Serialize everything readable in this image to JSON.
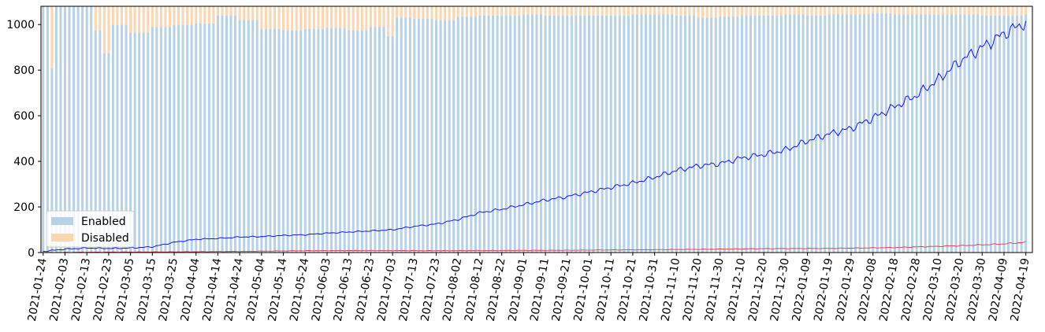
{
  "chart_data": {
    "type": "bar",
    "title": "",
    "xlabel": "",
    "ylabel": "",
    "x_type": "date",
    "x_range": [
      "2021-01-23",
      "2022-04-22"
    ],
    "ylim": [
      0,
      1080
    ],
    "yticks": [
      0,
      200,
      400,
      600,
      800,
      1000
    ],
    "xticks": [
      "2021-01-24",
      "2021-02-03",
      "2021-02-13",
      "2021-02-23",
      "2021-03-05",
      "2021-03-15",
      "2021-03-25",
      "2021-04-04",
      "2021-04-14",
      "2021-04-24",
      "2021-05-04",
      "2021-05-14",
      "2021-05-24",
      "2021-06-03",
      "2021-06-13",
      "2021-06-23",
      "2021-07-03",
      "2021-07-13",
      "2021-07-23",
      "2021-08-02",
      "2021-08-12",
      "2021-08-22",
      "2021-09-01",
      "2021-09-11",
      "2021-09-21",
      "2021-10-01",
      "2021-10-11",
      "2021-10-21",
      "2021-10-31",
      "2021-11-10",
      "2021-11-20",
      "2021-11-30",
      "2021-12-10",
      "2021-12-20",
      "2021-12-30",
      "2022-01-09",
      "2022-01-19",
      "2022-01-29",
      "2022-02-08",
      "2022-02-18",
      "2022-02-28",
      "2022-03-10",
      "2022-03-20",
      "2022-03-30",
      "2022-04-09",
      "2022-04-19"
    ],
    "grid": false,
    "legend_position": "lower-left",
    "stacked": true,
    "series": [
      {
        "name": "Enabled",
        "kind": "bar",
        "color": "#b7d1e6",
        "data": [
          [
            "2021-01-24",
            1080
          ],
          [
            "2021-01-27",
            810
          ],
          [
            "2021-01-29",
            1080
          ],
          [
            "2021-02-13",
            1080
          ],
          [
            "2021-02-16",
            975
          ],
          [
            "2021-02-20",
            875
          ],
          [
            "2021-02-25",
            1000
          ],
          [
            "2021-03-05",
            965
          ],
          [
            "2021-03-15",
            990
          ],
          [
            "2021-03-25",
            1000
          ],
          [
            "2021-04-04",
            1005
          ],
          [
            "2021-04-14",
            1040
          ],
          [
            "2021-04-24",
            1020
          ],
          [
            "2021-05-04",
            980
          ],
          [
            "2021-05-14",
            975
          ],
          [
            "2021-05-24",
            980
          ],
          [
            "2021-06-03",
            985
          ],
          [
            "2021-06-13",
            975
          ],
          [
            "2021-06-23",
            990
          ],
          [
            "2021-07-01",
            950
          ],
          [
            "2021-07-05",
            1030
          ],
          [
            "2021-07-13",
            1025
          ],
          [
            "2021-07-23",
            1020
          ],
          [
            "2021-08-02",
            1035
          ],
          [
            "2021-08-12",
            1040
          ],
          [
            "2021-08-22",
            1040
          ],
          [
            "2021-09-01",
            1045
          ],
          [
            "2021-09-11",
            1040
          ],
          [
            "2021-09-21",
            1040
          ],
          [
            "2021-10-01",
            1040
          ],
          [
            "2021-10-11",
            1040
          ],
          [
            "2021-10-21",
            1045
          ],
          [
            "2021-10-31",
            1045
          ],
          [
            "2021-11-10",
            1040
          ],
          [
            "2021-11-20",
            1030
          ],
          [
            "2021-11-30",
            1035
          ],
          [
            "2021-12-10",
            1040
          ],
          [
            "2021-12-20",
            1040
          ],
          [
            "2021-12-30",
            1045
          ],
          [
            "2022-01-09",
            1040
          ],
          [
            "2022-01-19",
            1045
          ],
          [
            "2022-01-29",
            1045
          ],
          [
            "2022-02-08",
            1050
          ],
          [
            "2022-02-18",
            1045
          ],
          [
            "2022-02-28",
            1045
          ],
          [
            "2022-03-10",
            1045
          ],
          [
            "2022-03-20",
            1045
          ],
          [
            "2022-03-30",
            1040
          ],
          [
            "2022-04-09",
            1040
          ],
          [
            "2022-04-19",
            1045
          ]
        ]
      },
      {
        "name": "Disabled",
        "kind": "bar",
        "color": "#fdd5b0",
        "data": [
          [
            "2021-01-24",
            0
          ],
          [
            "2021-01-27",
            270
          ],
          [
            "2021-01-29",
            0
          ],
          [
            "2021-02-13",
            0
          ],
          [
            "2021-02-16",
            105
          ],
          [
            "2021-02-20",
            205
          ],
          [
            "2021-02-25",
            80
          ],
          [
            "2021-03-05",
            115
          ],
          [
            "2021-03-15",
            90
          ],
          [
            "2021-03-25",
            80
          ],
          [
            "2021-04-04",
            75
          ],
          [
            "2021-04-14",
            40
          ],
          [
            "2021-04-24",
            60
          ],
          [
            "2021-05-04",
            100
          ],
          [
            "2021-05-14",
            105
          ],
          [
            "2021-05-24",
            100
          ],
          [
            "2021-06-03",
            95
          ],
          [
            "2021-06-13",
            105
          ],
          [
            "2021-06-23",
            90
          ],
          [
            "2021-07-01",
            130
          ],
          [
            "2021-07-05",
            50
          ],
          [
            "2021-07-13",
            55
          ],
          [
            "2021-07-23",
            60
          ],
          [
            "2021-08-02",
            45
          ],
          [
            "2021-08-12",
            40
          ],
          [
            "2021-08-22",
            40
          ],
          [
            "2021-09-01",
            35
          ],
          [
            "2021-09-11",
            40
          ],
          [
            "2021-09-21",
            40
          ],
          [
            "2021-10-01",
            40
          ],
          [
            "2021-10-11",
            40
          ],
          [
            "2021-10-21",
            35
          ],
          [
            "2021-10-31",
            35
          ],
          [
            "2021-11-10",
            40
          ],
          [
            "2021-11-20",
            50
          ],
          [
            "2021-11-30",
            45
          ],
          [
            "2021-12-10",
            40
          ],
          [
            "2021-12-20",
            40
          ],
          [
            "2021-12-30",
            35
          ],
          [
            "2022-01-09",
            40
          ],
          [
            "2022-01-19",
            35
          ],
          [
            "2022-01-29",
            35
          ],
          [
            "2022-02-08",
            30
          ],
          [
            "2022-02-18",
            35
          ],
          [
            "2022-02-28",
            35
          ],
          [
            "2022-03-10",
            35
          ],
          [
            "2022-03-20",
            35
          ],
          [
            "2022-03-30",
            40
          ],
          [
            "2022-04-09",
            40
          ],
          [
            "2022-04-19",
            35
          ]
        ]
      },
      {
        "kind": "line",
        "color": "#0000ff",
        "data": [
          [
            "2021-01-24",
            5
          ],
          [
            "2021-02-03",
            15
          ],
          [
            "2021-02-13",
            20
          ],
          [
            "2021-02-23",
            18
          ],
          [
            "2021-03-05",
            20
          ],
          [
            "2021-03-15",
            25
          ],
          [
            "2021-03-25",
            45
          ],
          [
            "2021-04-04",
            58
          ],
          [
            "2021-04-14",
            62
          ],
          [
            "2021-04-24",
            68
          ],
          [
            "2021-05-04",
            70
          ],
          [
            "2021-05-14",
            75
          ],
          [
            "2021-05-24",
            78
          ],
          [
            "2021-06-03",
            85
          ],
          [
            "2021-06-13",
            90
          ],
          [
            "2021-06-23",
            95
          ],
          [
            "2021-07-03",
            100
          ],
          [
            "2021-07-13",
            115
          ],
          [
            "2021-07-23",
            125
          ],
          [
            "2021-08-02",
            145
          ],
          [
            "2021-08-12",
            175
          ],
          [
            "2021-08-22",
            190
          ],
          [
            "2021-09-01",
            210
          ],
          [
            "2021-09-11",
            230
          ],
          [
            "2021-09-21",
            245
          ],
          [
            "2021-10-01",
            265
          ],
          [
            "2021-10-11",
            285
          ],
          [
            "2021-10-21",
            305
          ],
          [
            "2021-10-31",
            330
          ],
          [
            "2021-11-10",
            360
          ],
          [
            "2021-11-20",
            380
          ],
          [
            "2021-11-30",
            390
          ],
          [
            "2021-12-10",
            415
          ],
          [
            "2021-12-20",
            430
          ],
          [
            "2021-12-30",
            450
          ],
          [
            "2022-01-09",
            490
          ],
          [
            "2022-01-19",
            520
          ],
          [
            "2022-01-29",
            545
          ],
          [
            "2022-02-08",
            590
          ],
          [
            "2022-02-18",
            640
          ],
          [
            "2022-02-28",
            690
          ],
          [
            "2022-03-10",
            760
          ],
          [
            "2022-03-20",
            840
          ],
          [
            "2022-03-30",
            900
          ],
          [
            "2022-04-09",
            960
          ],
          [
            "2022-04-19",
            1010
          ]
        ]
      },
      {
        "kind": "line",
        "color": "#e8344a",
        "data": [
          [
            "2021-01-24",
            0
          ],
          [
            "2021-02-23",
            2
          ],
          [
            "2021-03-25",
            3
          ],
          [
            "2021-04-24",
            5
          ],
          [
            "2021-05-24",
            8
          ],
          [
            "2021-06-23",
            9
          ],
          [
            "2021-07-23",
            8
          ],
          [
            "2021-08-22",
            9
          ],
          [
            "2021-09-21",
            10
          ],
          [
            "2021-10-21",
            12
          ],
          [
            "2021-11-20",
            14
          ],
          [
            "2021-12-20",
            17
          ],
          [
            "2022-01-19",
            18
          ],
          [
            "2022-02-18",
            22
          ],
          [
            "2022-03-20",
            30
          ],
          [
            "2022-04-09",
            38
          ],
          [
            "2022-04-19",
            45
          ]
        ]
      }
    ]
  }
}
